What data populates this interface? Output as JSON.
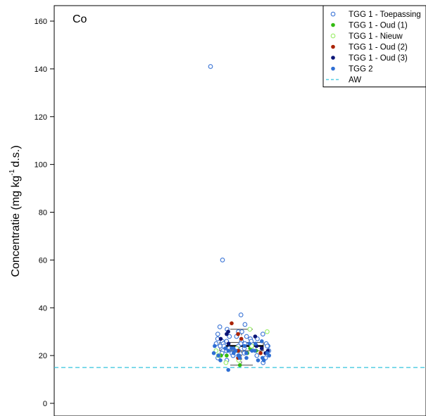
{
  "chart_data": {
    "type": "scatter",
    "title": "Co",
    "ylabel_main": "Concentratie (mg kg",
    "ylabel_sup": "-1",
    "ylabel_tail": "d.s.)",
    "ylim": [
      -6,
      165
    ],
    "yticks": [
      0,
      20,
      40,
      60,
      80,
      100,
      120,
      140,
      160
    ],
    "legend_position": "top-right",
    "reference_line": {
      "name": "AW",
      "value": 15,
      "color": "#33c4dd"
    },
    "boxplot": {
      "min": 16,
      "q1": 22,
      "median": 24,
      "q3": 25.5,
      "max": 31
    },
    "series": [
      {
        "name": "TGG 1 - Toepassing",
        "marker": "open",
        "color": "#3a74d6",
        "values": [
          141,
          60,
          37,
          33,
          32,
          31,
          30,
          30,
          29,
          29,
          28,
          28,
          28,
          27,
          27,
          27,
          26,
          26,
          26,
          26,
          25,
          25,
          25,
          25,
          25,
          24,
          24,
          24,
          24,
          24,
          23,
          23,
          23,
          23,
          22,
          22,
          22,
          22,
          21,
          21,
          21,
          20,
          20,
          20,
          19,
          19,
          18,
          17
        ]
      },
      {
        "name": "TGG 1 - Oud (1)",
        "marker": "filled",
        "color": "#33bb11",
        "values": [
          16,
          20,
          21,
          22,
          22,
          23,
          20
        ]
      },
      {
        "name": "TGG 1 - Nieuw",
        "marker": "open",
        "color": "#99ee66",
        "values": [
          17,
          18,
          20,
          22,
          23,
          24,
          31,
          30
        ]
      },
      {
        "name": "TGG 1 - Oud (2)",
        "marker": "filled",
        "color": "#aa2200",
        "values": [
          33.5,
          29,
          27,
          22,
          21,
          20,
          19
        ]
      },
      {
        "name": "TGG 1 - Oud (3)",
        "marker": "filled",
        "color": "#0b1577",
        "values": [
          30,
          29,
          28,
          27,
          25,
          24,
          23,
          22,
          21
        ]
      },
      {
        "name": "TGG 2",
        "marker": "filled",
        "color": "#2f6fd4",
        "values": [
          26,
          25,
          25,
          24,
          24,
          23,
          23,
          23,
          22,
          22,
          22,
          22,
          21,
          21,
          21,
          21,
          20,
          20,
          20,
          20,
          19,
          19,
          19,
          18,
          18,
          18,
          14
        ]
      }
    ]
  }
}
